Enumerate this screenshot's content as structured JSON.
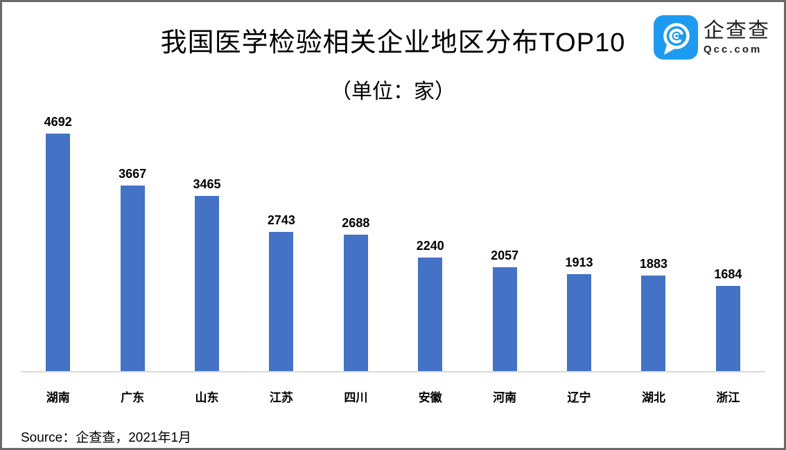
{
  "header": {
    "title": "我国医学检验相关企业地区分布TOP10",
    "logo": {
      "name_cn": "企查查",
      "name_en": "Qcc.com",
      "brand_color": "#1E9BF0"
    }
  },
  "chart_data": {
    "type": "bar",
    "title": "我国医学检验相关企业地区分布TOP10",
    "subtitle": "（单位：家）",
    "unit": "家",
    "categories": [
      "湖南",
      "广东",
      "山东",
      "江苏",
      "四川",
      "安徽",
      "河南",
      "辽宁",
      "湖北",
      "浙江"
    ],
    "values": [
      4692,
      3667,
      3465,
      2743,
      2688,
      2240,
      2057,
      1913,
      1883,
      1684
    ],
    "bar_color": "#4472C4",
    "axis_color": "#D9D9D9",
    "ylim": [
      0,
      4800
    ],
    "grid": false,
    "legend": false,
    "value_labels": true
  },
  "source": {
    "text": "Source：企查查，2021年1月"
  }
}
